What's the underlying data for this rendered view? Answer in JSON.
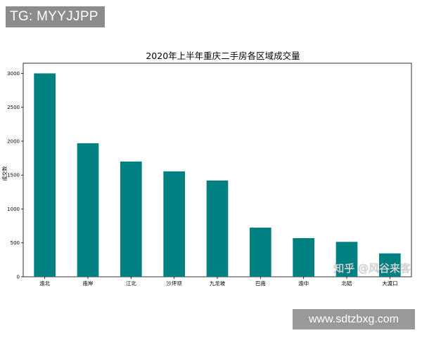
{
  "overlay": {
    "tg_text": "TG: MYYJJPP",
    "watermark_text": "知乎 @风谷来客",
    "site_text": "www.sdtzbxg.com"
  },
  "chart_data": {
    "type": "bar",
    "title": "2020年上半年重庆二手房各区域成交量",
    "xlabel": "",
    "ylabel": "成交数",
    "categories": [
      "渝北",
      "南岸",
      "江北",
      "沙坪坝",
      "九龙坡",
      "巴南",
      "渝中",
      "北碚",
      "大渡口"
    ],
    "values": [
      3000,
      1970,
      1700,
      1555,
      1420,
      725,
      570,
      515,
      345
    ],
    "ylim": [
      0,
      3150
    ],
    "yticks": [
      0,
      500,
      1000,
      1500,
      2000,
      2500,
      3000
    ],
    "bar_color": "#008080",
    "grid": false
  }
}
